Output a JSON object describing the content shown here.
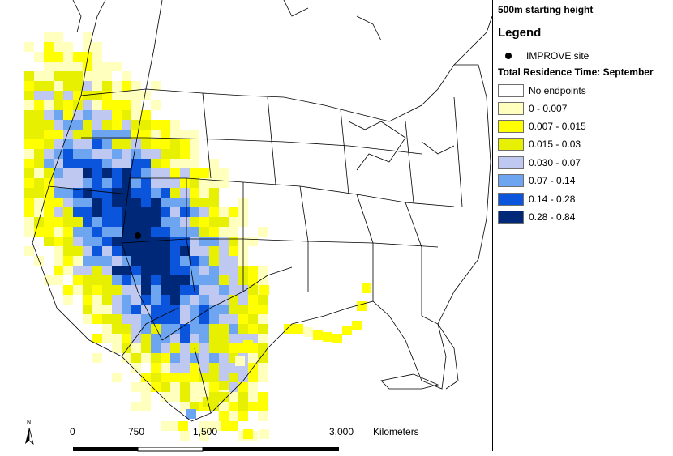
{
  "title": "500m starting height",
  "legend": {
    "heading": "Legend",
    "site_label": "IMPROVE site",
    "subtitle": "Total Residence Time: September",
    "classes": [
      {
        "label": "No endpoints",
        "color": "#ffffff"
      },
      {
        "label": "0 - 0.007",
        "color": "#ffffbe"
      },
      {
        "label": "0.007 - 0.015",
        "color": "#ffff00"
      },
      {
        "label": "0.015 - 0.03",
        "color": "#e6f000"
      },
      {
        "label": "0.030 - 0.07",
        "color": "#bec8f0"
      },
      {
        "label": "0.07 - 0.14",
        "color": "#6ea5f0"
      },
      {
        "label": "0.14 - 0.28",
        "color": "#0a55dc"
      },
      {
        "label": "0.28 - 0.84",
        "color": "#002878"
      }
    ]
  },
  "scale": {
    "ticks": [
      "0",
      "750",
      "1,500",
      "3,000"
    ],
    "unit": "Kilometers",
    "north_label": "N"
  }
}
